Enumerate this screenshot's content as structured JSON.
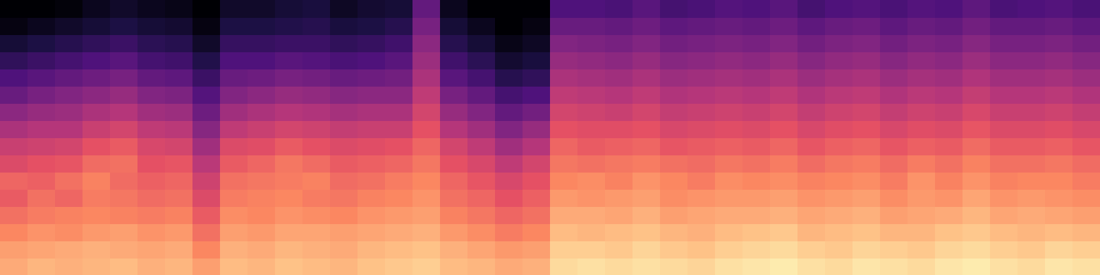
{
  "chart_data": {
    "type": "heatmap",
    "tick_labels": false,
    "color_range": [
      -80,
      0
    ],
    "cells": [
      [
        -14,
        -16,
        -20,
        -24,
        -28,
        -26,
        -32,
        -36,
        -42,
        -48,
        -55,
        -60,
        -66,
        -72,
        -78,
        -80
      ],
      [
        -12,
        -15,
        -18,
        -22,
        -24,
        -27,
        -30,
        -35,
        -40,
        -46,
        -52,
        -58,
        -64,
        -70,
        -76,
        -80
      ],
      [
        -13,
        -14,
        -19,
        -21,
        -26,
        -24,
        -29,
        -34,
        -40,
        -45,
        -50,
        -56,
        -62,
        -68,
        -74,
        -79
      ],
      [
        -12,
        -13,
        -17,
        -20,
        -22,
        -21,
        -25,
        -30,
        -36,
        -42,
        -48,
        -54,
        -60,
        -66,
        -72,
        -76
      ],
      [
        -11,
        -14,
        -16,
        -21,
        -23,
        -25,
        -24,
        -28,
        -34,
        -40,
        -46,
        -52,
        -58,
        -64,
        -70,
        -74
      ],
      [
        -13,
        -15,
        -18,
        -22,
        -25,
        -27,
        -30,
        -33,
        -38,
        -44,
        -50,
        -56,
        -62,
        -67,
        -72,
        -76
      ],
      [
        -12,
        -14,
        -17,
        -21,
        -24,
        -26,
        -29,
        -34,
        -39,
        -45,
        -51,
        -57,
        -63,
        -68,
        -73,
        -77
      ],
      [
        -16,
        -20,
        -24,
        -28,
        -32,
        -35,
        -39,
        -44,
        -49,
        -54,
        -59,
        -64,
        -69,
        -74,
        -78,
        -80
      ],
      [
        -11,
        -13,
        -16,
        -19,
        -22,
        -24,
        -28,
        -32,
        -38,
        -44,
        -50,
        -55,
        -60,
        -65,
        -70,
        -74
      ],
      [
        -12,
        -14,
        -17,
        -20,
        -21,
        -23,
        -26,
        -31,
        -36,
        -42,
        -48,
        -54,
        -60,
        -65,
        -70,
        -74
      ],
      [
        -10,
        -12,
        -15,
        -18,
        -20,
        -22,
        -23,
        -28,
        -34,
        -40,
        -46,
        -52,
        -58,
        -64,
        -69,
        -72
      ],
      [
        -11,
        -13,
        -15,
        -19,
        -22,
        -21,
        -25,
        -30,
        -35,
        -41,
        -47,
        -53,
        -59,
        -64,
        -68,
        -71
      ],
      [
        -12,
        -14,
        -16,
        -20,
        -23,
        -25,
        -28,
        -32,
        -37,
        -43,
        -49,
        -55,
        -61,
        -66,
        -71,
        -75
      ],
      [
        -10,
        -12,
        -15,
        -18,
        -21,
        -24,
        -27,
        -31,
        -36,
        -42,
        -48,
        -54,
        -60,
        -65,
        -70,
        -73
      ],
      [
        -9,
        -11,
        -14,
        -17,
        -20,
        -22,
        -26,
        -30,
        -36,
        -42,
        -48,
        -53,
        -58,
        -63,
        -68,
        -72
      ],
      [
        -8,
        -10,
        -13,
        -16,
        -18,
        -20,
        -23,
        -26,
        -30,
        -34,
        -38,
        -42,
        -45,
        -48,
        -52,
        -56
      ],
      [
        -11,
        -13,
        -17,
        -21,
        -24,
        -26,
        -30,
        -34,
        -40,
        -46,
        -52,
        -58,
        -63,
        -68,
        -72,
        -76
      ],
      [
        -12,
        -15,
        -19,
        -23,
        -26,
        -29,
        -33,
        -38,
        -44,
        -50,
        -56,
        -62,
        -67,
        -72,
        -76,
        -80
      ],
      [
        -14,
        -17,
        -22,
        -26,
        -30,
        -33,
        -38,
        -44,
        -50,
        -56,
        -62,
        -68,
        -73,
        -77,
        -80,
        -80
      ],
      [
        -13,
        -16,
        -20,
        -24,
        -27,
        -30,
        -34,
        -40,
        -46,
        -53,
        -60,
        -66,
        -71,
        -75,
        -78,
        -80
      ],
      [
        -6,
        -8,
        -11,
        -14,
        -17,
        -20,
        -23,
        -26,
        -30,
        -34,
        -38,
        -42,
        -46,
        -50,
        -55,
        -60
      ],
      [
        -5,
        -8,
        -12,
        -14,
        -18,
        -19,
        -24,
        -28,
        -31,
        -35,
        -39,
        -43,
        -47,
        -51,
        -55,
        -60
      ],
      [
        -6,
        -9,
        -11,
        -15,
        -17,
        -21,
        -23,
        -27,
        -31,
        -36,
        -40,
        -44,
        -48,
        -52,
        -56,
        -61
      ],
      [
        -5,
        -7,
        -10,
        -13,
        -16,
        -18,
        -22,
        -26,
        -30,
        -34,
        -38,
        -42,
        -46,
        -50,
        -54,
        -58
      ],
      [
        -6,
        -9,
        -12,
        -16,
        -19,
        -20,
        -24,
        -29,
        -33,
        -37,
        -41,
        -45,
        -49,
        -53,
        -57,
        -62
      ],
      [
        -7,
        -10,
        -13,
        -15,
        -18,
        -22,
        -25,
        -28,
        -32,
        -36,
        -40,
        -44,
        -48,
        -52,
        -56,
        -61
      ],
      [
        -5,
        -8,
        -11,
        -14,
        -17,
        -19,
        -23,
        -27,
        -31,
        -35,
        -39,
        -43,
        -47,
        -51,
        -55,
        -59
      ],
      [
        -4,
        -7,
        -10,
        -14,
        -17,
        -20,
        -24,
        -28,
        -32,
        -36,
        -40,
        -44,
        -48,
        -52,
        -56,
        -60
      ],
      [
        -3,
        -6,
        -9,
        -13,
        -16,
        -19,
        -22,
        -26,
        -30,
        -34,
        -38,
        -42,
        -46,
        -50,
        -54,
        -58
      ],
      [
        -5,
        -8,
        -12,
        -15,
        -18,
        -21,
        -25,
        -29,
        -33,
        -37,
        -41,
        -45,
        -49,
        -53,
        -57,
        -62
      ],
      [
        -6,
        -9,
        -11,
        -14,
        -17,
        -20,
        -23,
        -27,
        -31,
        -35,
        -39,
        -43,
        -47,
        -51,
        -55,
        -60
      ],
      [
        -4,
        -7,
        -10,
        -13,
        -16,
        -19,
        -22,
        -26,
        -30,
        -34,
        -38,
        -42,
        -46,
        -50,
        -54,
        -59
      ],
      [
        -5,
        -8,
        -12,
        -16,
        -19,
        -22,
        -25,
        -29,
        -33,
        -37,
        -41,
        -45,
        -49,
        -53,
        -57,
        -61
      ],
      [
        -6,
        -9,
        -12,
        -15,
        -17,
        -18,
        -22,
        -27,
        -31,
        -35,
        -39,
        -43,
        -47,
        -51,
        -55,
        -59
      ],
      [
        -4,
        -7,
        -10,
        -14,
        -18,
        -21,
        -24,
        -28,
        -32,
        -36,
        -40,
        -44,
        -48,
        -52,
        -56,
        -60
      ],
      [
        -3,
        -6,
        -9,
        -12,
        -15,
        -18,
        -21,
        -25,
        -29,
        -33,
        -37,
        -41,
        -45,
        -49,
        -53,
        -57
      ],
      [
        -5,
        -8,
        -11,
        -15,
        -18,
        -21,
        -24,
        -28,
        -32,
        -36,
        -40,
        -44,
        -48,
        -52,
        -56,
        -61
      ],
      [
        -6,
        -9,
        -12,
        -14,
        -17,
        -20,
        -24,
        -28,
        -32,
        -36,
        -40,
        -44,
        -48,
        -52,
        -56,
        -60
      ],
      [
        -4,
        -7,
        -11,
        -15,
        -18,
        -20,
        -23,
        -27,
        -31,
        -35,
        -39,
        -43,
        -47,
        -51,
        -55,
        -59
      ],
      [
        -5,
        -8,
        -12,
        -16,
        -19,
        -22,
        -25,
        -29,
        -33,
        -37,
        -41,
        -45,
        -49,
        -53,
        -57,
        -61
      ]
    ]
  }
}
